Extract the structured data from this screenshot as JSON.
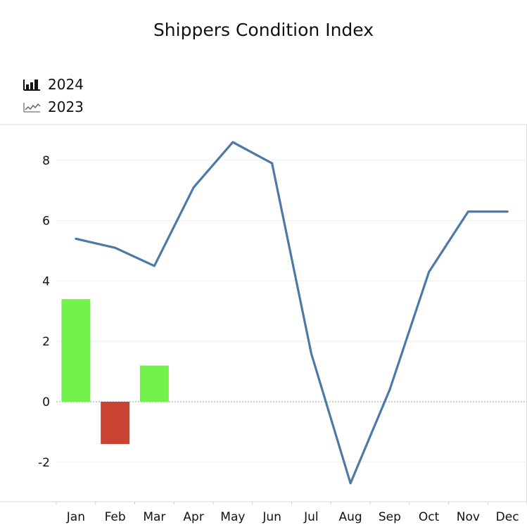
{
  "chart_data": {
    "type": "bar+line",
    "title": "Shippers Condition Index",
    "categories": [
      "Jan",
      "Feb",
      "Mar",
      "Apr",
      "May",
      "Jun",
      "Jul",
      "Aug",
      "Sep",
      "Oct",
      "Nov",
      "Dec"
    ],
    "series": [
      {
        "name": "2024",
        "type": "bar",
        "values": [
          3.4,
          -1.4,
          1.2,
          null,
          null,
          null,
          null,
          null,
          null,
          null,
          null,
          null
        ]
      },
      {
        "name": "2023",
        "type": "line",
        "values": [
          5.4,
          5.1,
          4.5,
          7.1,
          8.6,
          7.9,
          1.6,
          -2.7,
          0.4,
          4.3,
          6.3,
          6.3
        ]
      }
    ],
    "colors": {
      "positive_bar": "#72f24b",
      "negative_bar": "#c94333",
      "line": "#4e79a7"
    },
    "ylim": [
      -3.3,
      9.2
    ],
    "yticks": [
      8,
      6,
      4,
      2,
      0,
      -2
    ],
    "legend_position": "top-left",
    "grid": true
  }
}
